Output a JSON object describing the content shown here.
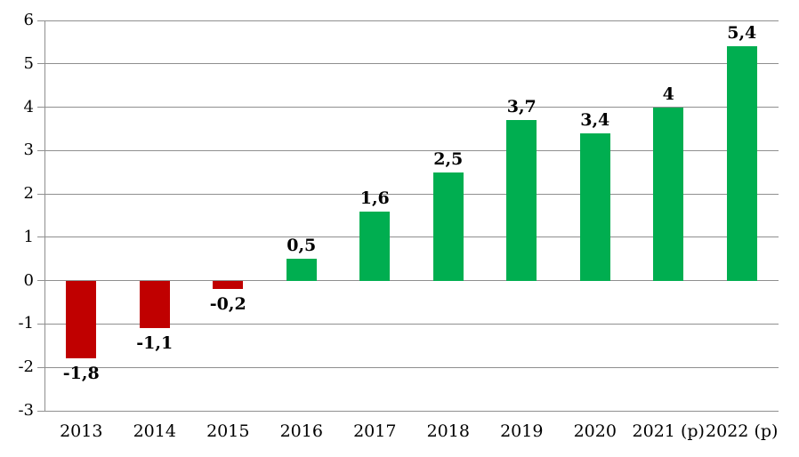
{
  "chart_data": {
    "type": "bar",
    "categories": [
      "2013",
      "2014",
      "2015",
      "2016",
      "2017",
      "2018",
      "2019",
      "2020",
      "2021 (p)",
      "2022 (p)"
    ],
    "values": [
      -1.8,
      -1.1,
      -0.2,
      0.5,
      1.6,
      2.5,
      3.7,
      3.4,
      4,
      5.4
    ],
    "labels": [
      "-1,8",
      "-1,1",
      "-0,2",
      "0,5",
      "1,6",
      "2,5",
      "3,7",
      "3,4",
      "4",
      "5,4"
    ],
    "title": "",
    "xlabel": "",
    "ylabel": "",
    "ylim": [
      -3,
      6
    ],
    "yticks": [
      6,
      5,
      4,
      3,
      2,
      1,
      0,
      -1,
      -2,
      -3
    ],
    "grid": true,
    "legend": false,
    "colors": {
      "positive": "#00ae50",
      "negative": "#c00000",
      "gridline": "#8f8f8f",
      "axis": "#8f8f8f",
      "text": "#000000",
      "background": "#ffffff"
    }
  }
}
